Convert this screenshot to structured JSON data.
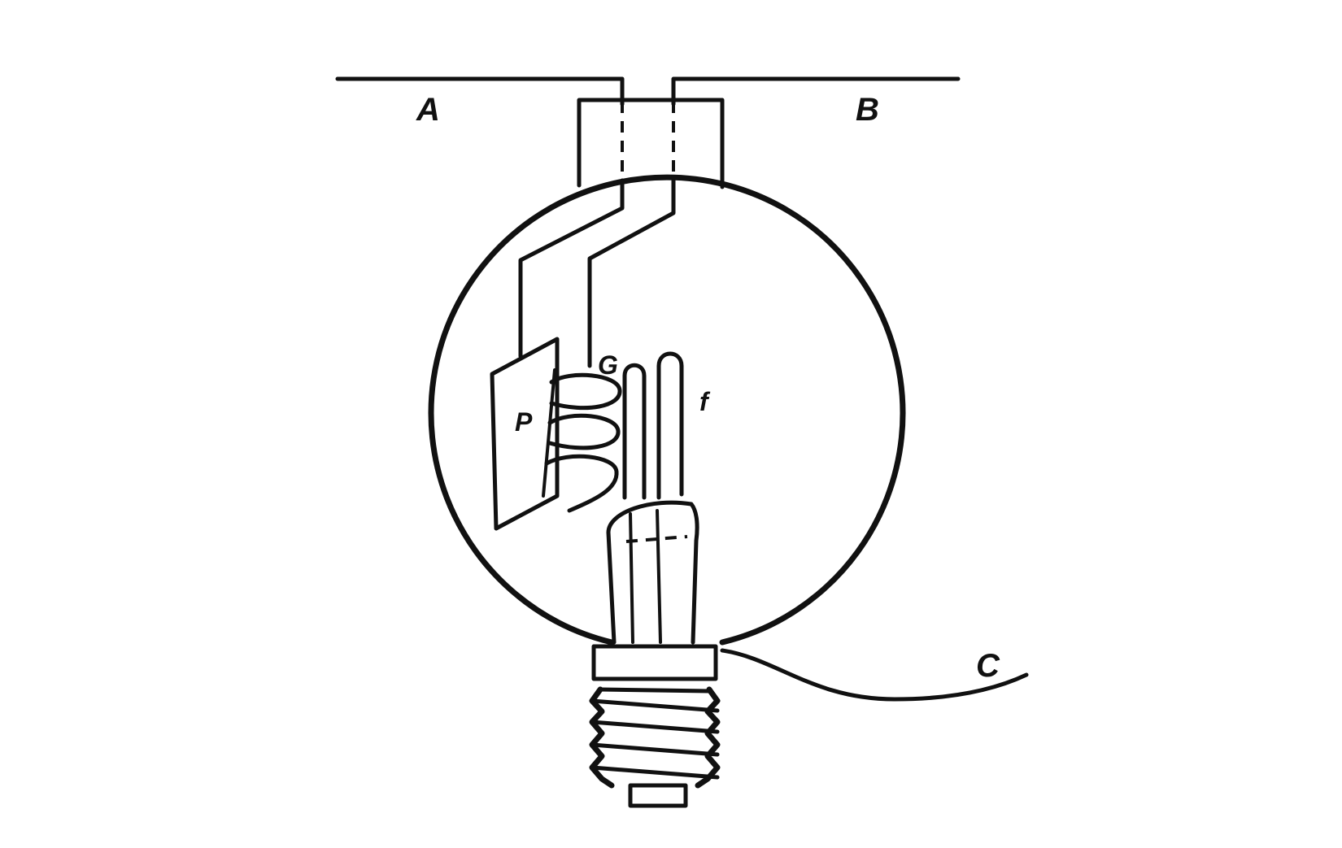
{
  "labels": {
    "wire_a": "A",
    "wire_b": "B",
    "plate": "P",
    "grid": "G",
    "filament": "f",
    "wire_c": "C"
  },
  "colors": {
    "ink": "#111111",
    "background": "#ffffff"
  }
}
